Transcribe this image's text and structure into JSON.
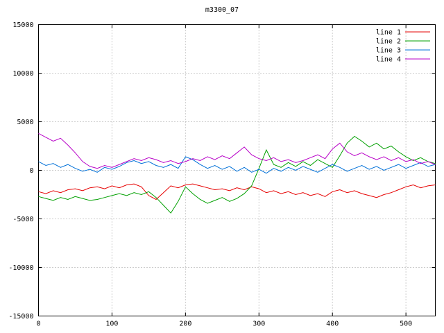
{
  "title": "m3300_07",
  "colors": {
    "background": "#ffffff",
    "axis": "#000000",
    "grid": "#9a9a9a",
    "text": "#000000"
  },
  "chart_data": {
    "type": "line",
    "title": "m3300_07",
    "xlabel": "",
    "ylabel": "",
    "xlim": [
      0,
      540
    ],
    "ylim": [
      -15000,
      15000
    ],
    "xticks": [
      0,
      100,
      200,
      300,
      400,
      500
    ],
    "yticks": [
      -15000,
      -10000,
      -5000,
      0,
      5000,
      10000,
      15000
    ],
    "grid": true,
    "grid_style": "dotted",
    "legend_position": "top-right",
    "x": [
      0,
      10,
      20,
      30,
      40,
      50,
      60,
      70,
      80,
      90,
      100,
      110,
      120,
      130,
      140,
      150,
      160,
      170,
      180,
      190,
      200,
      210,
      220,
      230,
      240,
      250,
      260,
      270,
      280,
      290,
      300,
      310,
      320,
      330,
      340,
      350,
      360,
      370,
      380,
      390,
      400,
      410,
      420,
      430,
      440,
      450,
      460,
      470,
      480,
      490,
      500,
      510,
      520,
      530,
      540
    ],
    "series": [
      {
        "name": "line 1",
        "color": "#e60000",
        "values": [
          -2200,
          -2400,
          -2100,
          -2300,
          -2000,
          -1900,
          -2100,
          -1800,
          -1700,
          -1900,
          -1600,
          -1800,
          -1500,
          -1400,
          -1700,
          -2600,
          -3000,
          -2300,
          -1600,
          -1800,
          -1500,
          -1400,
          -1600,
          -1800,
          -2000,
          -1900,
          -2100,
          -1800,
          -2000,
          -1700,
          -1900,
          -2300,
          -2100,
          -2400,
          -2200,
          -2500,
          -2300,
          -2600,
          -2400,
          -2700,
          -2200,
          -2000,
          -2300,
          -2100,
          -2400,
          -2600,
          -2800,
          -2500,
          -2300,
          -2000,
          -1700,
          -1500,
          -1800,
          -1600,
          -1500
        ]
      },
      {
        "name": "line 2",
        "color": "#00a000",
        "values": [
          -2700,
          -2900,
          -3100,
          -2800,
          -3000,
          -2700,
          -2900,
          -3100,
          -3000,
          -2800,
          -2600,
          -2400,
          -2600,
          -2300,
          -2500,
          -2200,
          -2800,
          -3600,
          -4400,
          -3200,
          -1700,
          -2400,
          -3000,
          -3400,
          -3100,
          -2800,
          -3200,
          -2900,
          -2400,
          -1600,
          200,
          2100,
          600,
          300,
          800,
          400,
          900,
          500,
          1100,
          700,
          300,
          1500,
          2800,
          3500,
          3000,
          2400,
          2800,
          2200,
          2500,
          1900,
          1400,
          1000,
          1300,
          900,
          700
        ]
      },
      {
        "name": "line 3",
        "color": "#0070d8",
        "values": [
          900,
          500,
          700,
          300,
          600,
          200,
          -100,
          100,
          -200,
          300,
          100,
          400,
          800,
          1000,
          700,
          900,
          500,
          300,
          600,
          200,
          1400,
          1100,
          600,
          200,
          500,
          100,
          400,
          -100,
          300,
          -200,
          100,
          -300,
          200,
          -100,
          300,
          0,
          400,
          100,
          -200,
          200,
          600,
          300,
          -100,
          200,
          500,
          100,
          400,
          0,
          300,
          600,
          200,
          500,
          800,
          400,
          600
        ]
      },
      {
        "name": "line 4",
        "color": "#b800c8",
        "values": [
          3800,
          3400,
          3000,
          3300,
          2600,
          1800,
          900,
          400,
          200,
          500,
          300,
          600,
          900,
          1200,
          1000,
          1300,
          1100,
          800,
          1000,
          700,
          900,
          1200,
          1000,
          1400,
          1100,
          1500,
          1200,
          1800,
          2400,
          1600,
          1200,
          1000,
          1300,
          900,
          1100,
          800,
          1000,
          1300,
          1600,
          1200,
          2200,
          2800,
          1900,
          1500,
          1800,
          1400,
          1100,
          1400,
          1000,
          1300,
          900,
          1100,
          700,
          900,
          600
        ]
      }
    ]
  }
}
